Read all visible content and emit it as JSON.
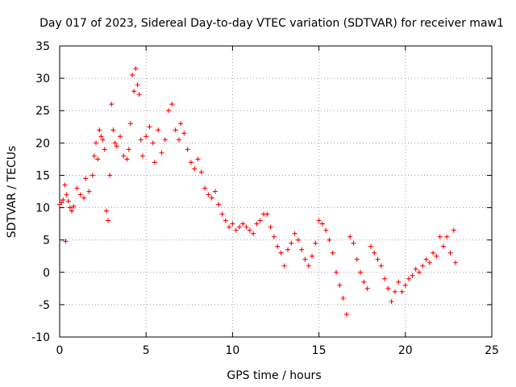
{
  "chart_data": {
    "type": "scatter",
    "title": "Day 017 of 2023, Sidereal Day-to-day VTEC variation (SDTVAR) for receiver maw1",
    "xlabel": "GPS time / hours",
    "ylabel": "SDTVAR / TECUs",
    "xlim": [
      0,
      25
    ],
    "ylim": [
      -10,
      35
    ],
    "xticks": [
      0,
      5,
      10,
      15,
      20,
      25
    ],
    "yticks": [
      -10,
      -5,
      0,
      5,
      10,
      15,
      20,
      25,
      30,
      35
    ],
    "xtick_labels": [
      "0",
      "5",
      "10",
      "15",
      "20",
      "25"
    ],
    "ytick_labels": [
      "-10",
      "-5",
      "0",
      "5",
      "10",
      "15",
      "20",
      "25",
      "30",
      "35"
    ],
    "grid": true,
    "marker": "+",
    "color": "#ff0000",
    "series": [
      {
        "name": "SDTVAR",
        "x": [
          0.0,
          0.1,
          0.2,
          0.3,
          0.35,
          0.4,
          0.5,
          0.6,
          0.7,
          0.8,
          1.0,
          1.2,
          1.4,
          1.5,
          1.7,
          1.9,
          2.0,
          2.1,
          2.2,
          2.3,
          2.4,
          2.5,
          2.6,
          2.7,
          2.8,
          2.9,
          3.0,
          3.1,
          3.2,
          3.3,
          3.5,
          3.7,
          3.9,
          4.0,
          4.1,
          4.2,
          4.3,
          4.4,
          4.5,
          4.6,
          4.7,
          4.8,
          5.0,
          5.2,
          5.4,
          5.5,
          5.7,
          5.9,
          6.1,
          6.3,
          6.5,
          6.7,
          6.9,
          7.0,
          7.2,
          7.4,
          7.6,
          7.8,
          8.0,
          8.2,
          8.4,
          8.6,
          8.8,
          9.0,
          9.2,
          9.4,
          9.6,
          9.8,
          10.0,
          10.2,
          10.4,
          10.6,
          10.8,
          11.0,
          11.2,
          11.4,
          11.6,
          11.8,
          12.0,
          12.2,
          12.4,
          12.6,
          12.8,
          13.0,
          13.2,
          13.4,
          13.6,
          13.8,
          14.0,
          14.2,
          14.4,
          14.6,
          14.8,
          15.0,
          15.2,
          15.4,
          15.6,
          15.8,
          16.0,
          16.2,
          16.4,
          16.6,
          16.8,
          17.0,
          17.2,
          17.4,
          17.6,
          17.8,
          18.0,
          18.2,
          18.4,
          18.6,
          18.8,
          19.0,
          19.2,
          19.4,
          19.6,
          19.8,
          20.0,
          20.2,
          20.4,
          20.6,
          20.8,
          21.0,
          21.2,
          21.4,
          21.6,
          21.8,
          22.0,
          22.2,
          22.4,
          22.6,
          22.8,
          22.9
        ],
        "y": [
          10.5,
          10.8,
          11.2,
          13.5,
          4.8,
          12.0,
          11.0,
          10.0,
          9.5,
          10.2,
          13.0,
          12.0,
          11.5,
          14.5,
          12.5,
          15.0,
          18.0,
          20.0,
          17.5,
          22.0,
          21.0,
          20.5,
          19.0,
          9.5,
          8.0,
          15.0,
          26.0,
          22.0,
          20.0,
          19.5,
          21.0,
          18.0,
          17.5,
          19.0,
          23.0,
          30.5,
          28.0,
          31.5,
          29.0,
          27.5,
          20.5,
          18.0,
          21.0,
          22.5,
          20.0,
          17.0,
          22.0,
          18.5,
          20.5,
          25.0,
          26.0,
          22.0,
          20.5,
          23.0,
          21.5,
          19.0,
          17.0,
          16.0,
          17.5,
          15.5,
          13.0,
          12.0,
          11.5,
          12.5,
          10.5,
          9.0,
          8.0,
          7.0,
          7.5,
          6.5,
          7.0,
          7.5,
          7.0,
          6.5,
          6.0,
          7.5,
          8.0,
          9.0,
          9.0,
          7.0,
          5.5,
          4.0,
          3.0,
          1.0,
          3.5,
          4.5,
          6.0,
          5.0,
          3.5,
          2.0,
          1.0,
          2.5,
          4.5,
          8.0,
          7.5,
          6.5,
          5.0,
          3.0,
          0.0,
          -2.0,
          -4.0,
          -6.5,
          5.5,
          4.5,
          2.0,
          0.0,
          -1.5,
          -2.5,
          4.0,
          3.0,
          2.0,
          1.0,
          -1.0,
          -2.5,
          -4.5,
          -3.0,
          -1.5,
          -3.0,
          -2.0,
          -1.0,
          -0.5,
          0.5,
          0.0,
          1.0,
          2.0,
          1.5,
          3.0,
          2.5,
          5.5,
          4.0,
          5.5,
          3.0,
          6.5,
          1.5
        ]
      }
    ]
  }
}
